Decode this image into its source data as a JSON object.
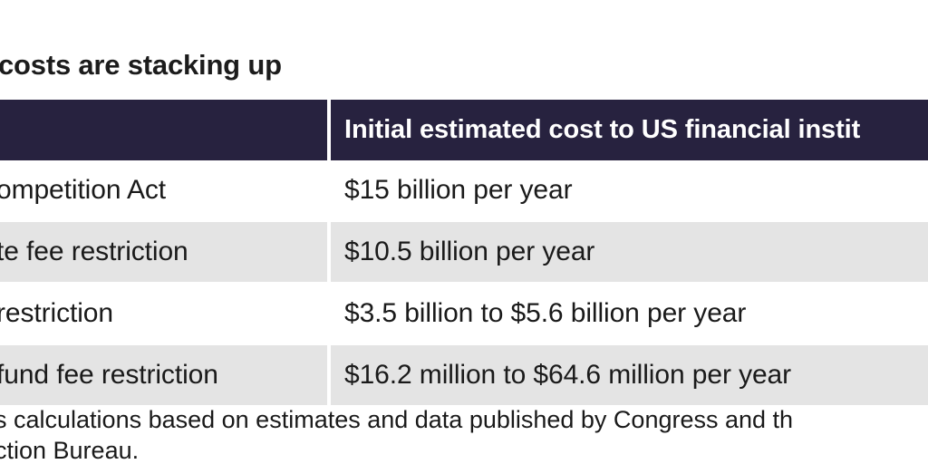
{
  "chart_data": {
    "type": "table",
    "title": "costs are stacking up",
    "columns": [
      "",
      "Initial estimated cost to US financial instit"
    ],
    "rows": [
      [
        "ompetition Act",
        "$15 billion per year"
      ],
      [
        "te fee restriction",
        "$10.5 billion per year"
      ],
      [
        "restriction",
        "$3.5 billion to $5.6 billion per year"
      ],
      [
        "fund fee restriction",
        "$16.2 million to $64.6 million per year"
      ]
    ],
    "note_lines": [
      "s calculations based on estimates and data published by Congress and th",
      "ction Bureau."
    ]
  },
  "colors": {
    "header_background": "#27223f",
    "header_text": "#ffffff",
    "shaded_row": "#e4e4e4",
    "plain_row": "#ffffff"
  }
}
